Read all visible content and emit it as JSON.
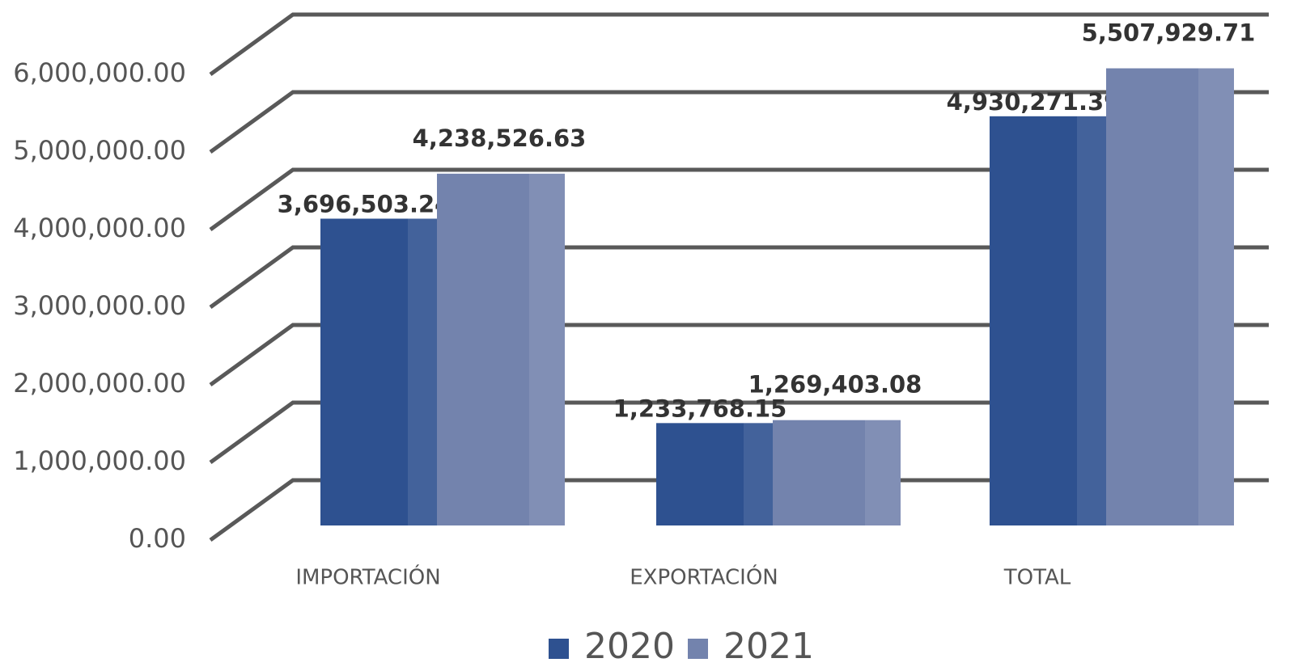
{
  "chart_data": {
    "type": "bar3d",
    "categories": [
      "IMPORTACIÓN",
      "EXPORTACIÓN",
      "TOTAL"
    ],
    "series": [
      {
        "name": "2020",
        "color": "#2e5190",
        "values": [
          3696503.24,
          1233768.15,
          4930271.39
        ],
        "value_labels": [
          "3,696,503.24",
          "1,233,768.15",
          "4,930,271.39"
        ]
      },
      {
        "name": "2021",
        "color": "#7383ad",
        "values": [
          4238526.63,
          1269403.08,
          5507929.71
        ],
        "value_labels": [
          "4,238,526.63",
          "1,269,403.08",
          "5,507,929.71"
        ]
      }
    ],
    "ylim": [
      0,
      6000000
    ],
    "yticks": [
      {
        "value": 0,
        "label": "0.00"
      },
      {
        "value": 1000000,
        "label": "1,000,000.00"
      },
      {
        "value": 2000000,
        "label": "2,000,000.00"
      },
      {
        "value": 3000000,
        "label": "3,000,000.00"
      },
      {
        "value": 4000000,
        "label": "4,000,000.00"
      },
      {
        "value": 5000000,
        "label": "5,000,000.00"
      },
      {
        "value": 6000000,
        "label": "6,000,000.00"
      }
    ],
    "grid": true,
    "legend": "bottom"
  }
}
